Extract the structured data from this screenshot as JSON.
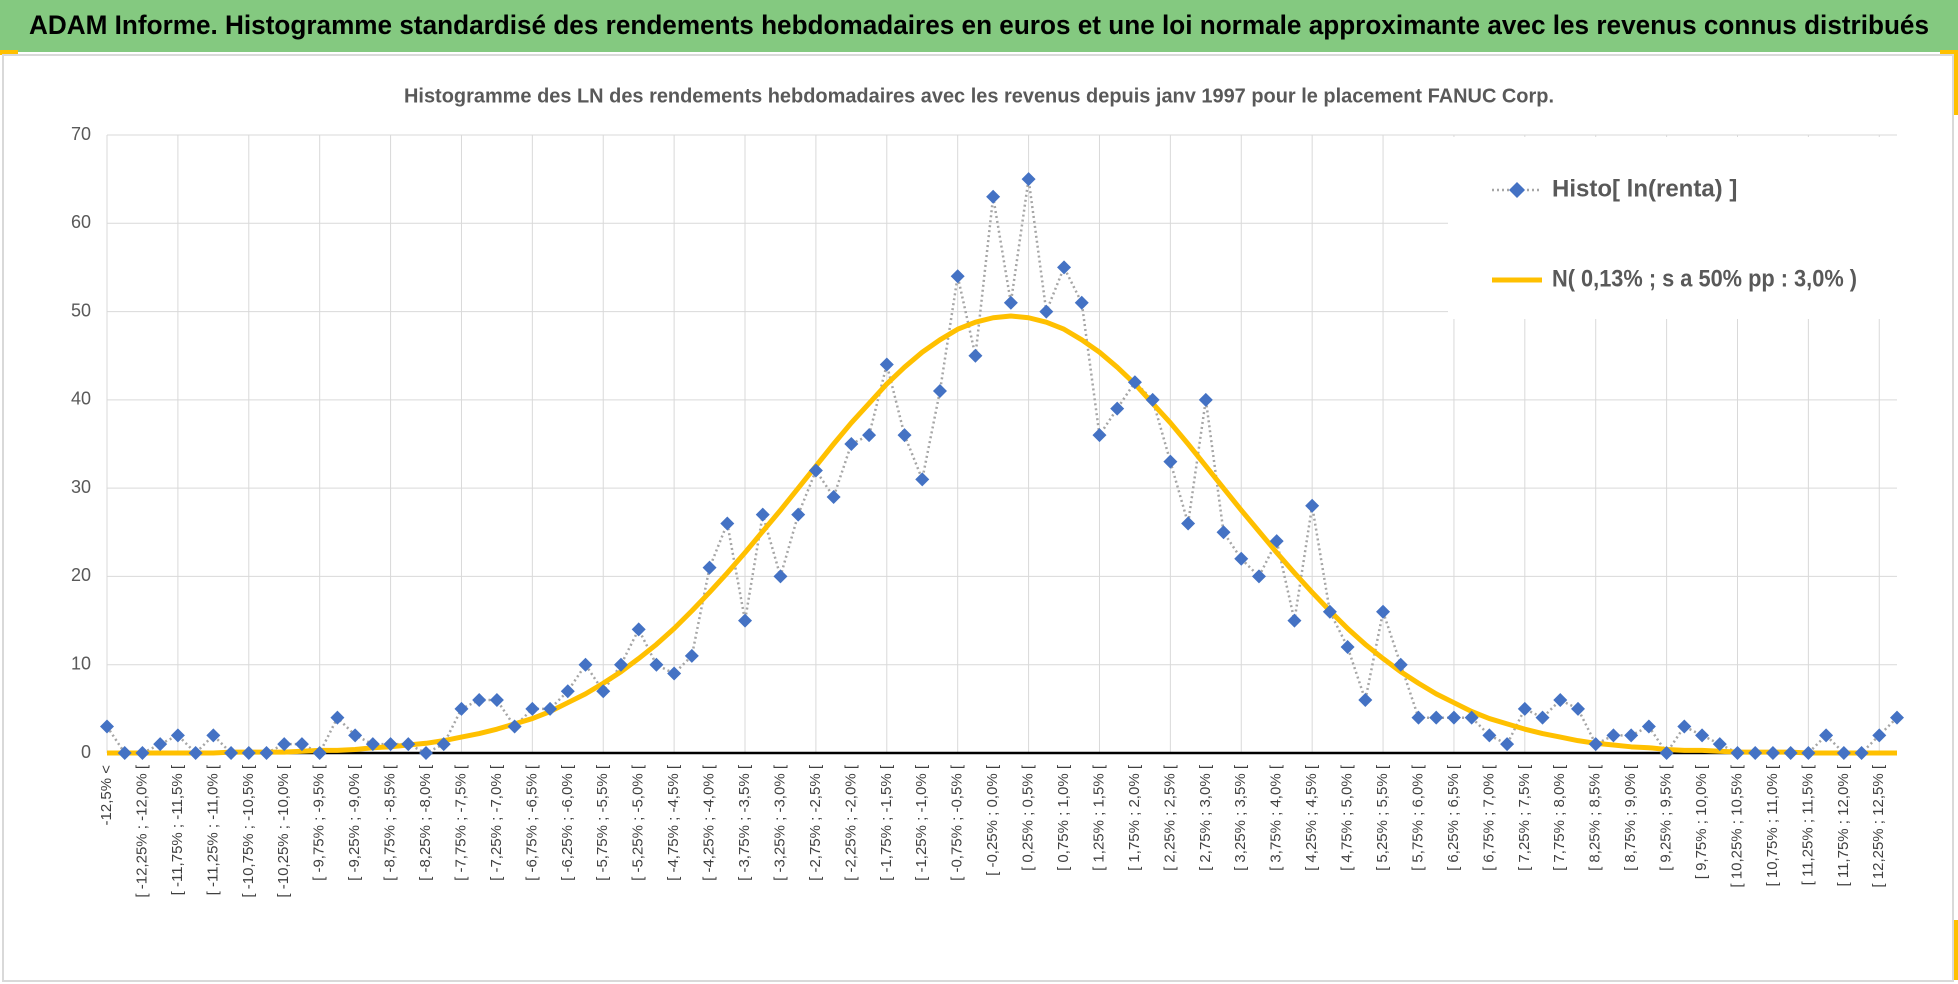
{
  "header": {
    "title": "ADAM Informe. Histogramme standardisé des rendements hebdomadaires en euros et une loi normale approximante avec les revenus connus distribués"
  },
  "chart_data": {
    "type": "line",
    "title": "Histogramme des LN des rendements hebdomadaires avec les revenus depuis janv 1997 pour le placement FANUC Corp.",
    "categories": [
      "-12,5% <",
      null,
      "[ -12,25% ; -12,0% [",
      null,
      "[ -11,75% ; -11,5% [",
      null,
      "[ -11,25% ; -11,0% [",
      null,
      "[ -10,75% ; -10,5% [",
      null,
      "[ -10,25% ; -10,0% [",
      null,
      "[ -9,75% ; -9,5% [",
      null,
      "[ -9,25% ; -9,0% [",
      null,
      "[ -8,75% ; -8,5% [",
      null,
      "[ -8,25% ; -8,0% [",
      null,
      "[ -7,75% ; -7,5% [",
      null,
      "[ -7,25% ; -7,0% [",
      null,
      "[ -6,75% ; -6,5% [",
      null,
      "[ -6,25% ; -6,0% [",
      null,
      "[ -5,75% ; -5,5% [",
      null,
      "[ -5,25% ; -5,0% [",
      null,
      "[ -4,75% ; -4,5% [",
      null,
      "[ -4,25% ; -4,0% [",
      null,
      "[ -3,75% ; -3,5% [",
      null,
      "[ -3,25% ; -3,0% [",
      null,
      "[ -2,75% ; -2,5% [",
      null,
      "[ -2,25% ; -2,0% [",
      null,
      "[ -1,75% ; -1,5% [",
      null,
      "[ -1,25% ; -1,0% [",
      null,
      "[ -0,75% ; -0,5% [",
      null,
      "[ -0,25% ; 0,0% [",
      null,
      "[ 0,25% ; 0,5% [",
      null,
      "[ 0,75% ; 1,0% [",
      null,
      "[ 1,25% ; 1,5% [",
      null,
      "[ 1,75% ; 2,0% [",
      null,
      "[ 2,25% ; 2,5% [",
      null,
      "[ 2,75% ; 3,0% [",
      null,
      "[ 3,25% ; 3,5% [",
      null,
      "[ 3,75% ; 4,0% [",
      null,
      "[ 4,25% ; 4,5% [",
      null,
      "[ 4,75% ; 5,0% [",
      null,
      "[ 5,25% ; 5,5% [",
      null,
      "[ 5,75% ; 6,0% [",
      null,
      "[ 6,25% ; 6,5% [",
      null,
      "[ 6,75% ; 7,0% [",
      null,
      "[ 7,25% ; 7,5% [",
      null,
      "[ 7,75% ; 8,0% [",
      null,
      "[ 8,25% ; 8,5% [",
      null,
      "[ 8,75% ; 9,0% [",
      null,
      "[ 9,25% ; 9,5% [",
      null,
      "[ 9,75% ; 10,0% [",
      null,
      "[ 10,25% ; 10,5% [",
      null,
      "[ 10,75% ; 11,0% [",
      null,
      "[ 11,25% ; 11,5% [",
      null,
      "[ 11,75% ; 12,0% [",
      null,
      "[ 12,25% ; 12,5% [",
      null
    ],
    "series": [
      {
        "name": "Histo[ ln(renta) ]",
        "color": "#4472c4",
        "line_color": "#a6a6a6",
        "values": [
          3,
          0,
          0,
          1,
          2,
          0,
          2,
          0,
          0,
          0,
          1,
          1,
          0,
          4,
          2,
          1,
          1,
          1,
          0,
          1,
          5,
          6,
          6,
          3,
          5,
          5,
          7,
          10,
          7,
          10,
          14,
          10,
          9,
          11,
          21,
          26,
          15,
          27,
          20,
          27,
          32,
          29,
          35,
          36,
          44,
          36,
          31,
          41,
          54,
          45,
          63,
          51,
          65,
          50,
          55,
          51,
          36,
          39,
          42,
          40,
          33,
          26,
          40,
          25,
          22,
          20,
          24,
          15,
          28,
          16,
          12,
          6,
          16,
          10,
          4,
          4,
          4,
          4,
          2,
          1,
          5,
          4,
          6,
          5,
          1,
          2,
          2,
          3,
          0,
          3,
          2,
          1,
          0,
          0,
          0,
          0,
          0,
          2,
          0,
          0,
          2,
          4
        ]
      },
      {
        "name": "N( 0,13% ; s a 50% pp : 3,0% )",
        "color": "#ffc000",
        "values": [
          0,
          0,
          0,
          0,
          0,
          0,
          0,
          0.1,
          0.1,
          0.1,
          0.1,
          0.2,
          0.3,
          0.3,
          0.4,
          0.6,
          0.7,
          0.9,
          1.1,
          1.4,
          1.8,
          2.2,
          2.7,
          3.3,
          3.9,
          4.7,
          5.7,
          6.7,
          7.9,
          9.2,
          10.7,
          12.3,
          14.1,
          16.1,
          18.2,
          20.4,
          22.7,
          25.1,
          27.5,
          30.0,
          32.5,
          35.0,
          37.4,
          39.6,
          41.8,
          43.7,
          45.4,
          46.8,
          48.0,
          48.8,
          49.3,
          49.5,
          49.3,
          48.8,
          48.0,
          46.8,
          45.4,
          43.7,
          41.8,
          39.6,
          37.4,
          35.0,
          32.5,
          30.0,
          27.5,
          25.1,
          22.7,
          20.4,
          18.2,
          16.1,
          14.1,
          12.3,
          10.7,
          9.2,
          7.9,
          6.7,
          5.7,
          4.7,
          3.9,
          3.3,
          2.7,
          2.2,
          1.8,
          1.4,
          1.1,
          0.9,
          0.7,
          0.6,
          0.4,
          0.3,
          0.3,
          0.2,
          0.1,
          0.1,
          0.1,
          0.1,
          0,
          0,
          0,
          0,
          0,
          0
        ]
      }
    ],
    "ylim": [
      0,
      70
    ],
    "yticks": [
      0,
      10,
      20,
      30,
      40,
      50,
      60,
      70
    ],
    "grid": true,
    "legend": "upper right"
  }
}
